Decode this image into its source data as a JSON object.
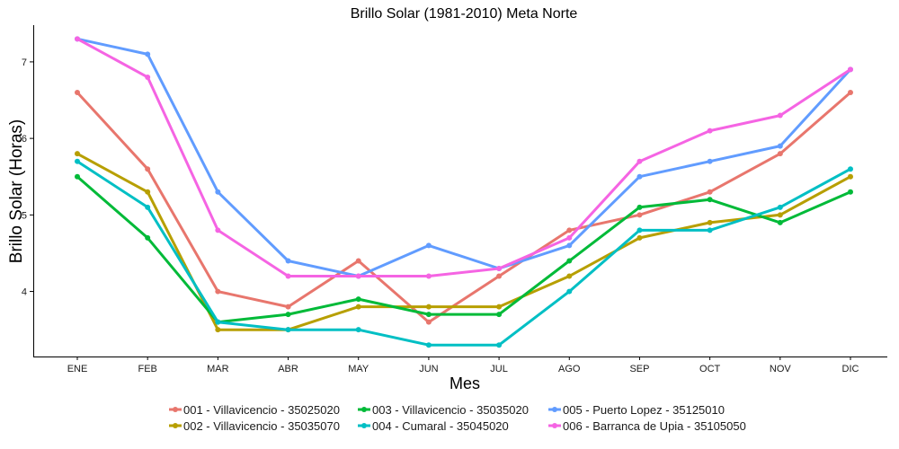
{
  "chart_data": {
    "type": "line",
    "title": "Brillo Solar (1981-2010)  Meta Norte",
    "xlabel": "Mes",
    "ylabel": "Brillo Solar (Horas)",
    "categories": [
      "ENE",
      "FEB",
      "MAR",
      "ABR",
      "MAY",
      "JUN",
      "JUL",
      "AGO",
      "SEP",
      "OCT",
      "NOV",
      "DIC"
    ],
    "ylim": [
      3.15,
      7.48
    ],
    "yticks": [
      4,
      5,
      6,
      7
    ],
    "grid": false,
    "legend_position": "bottom",
    "series": [
      {
        "name": "001 - Villavicencio - 35025020",
        "color": "#E8766D",
        "values": [
          6.6,
          5.6,
          4.0,
          3.8,
          4.4,
          3.6,
          4.2,
          4.8,
          5.0,
          5.3,
          5.8,
          6.6
        ]
      },
      {
        "name": "002 - Villavicencio - 35035070",
        "color": "#B79F00",
        "values": [
          5.8,
          5.3,
          3.5,
          3.5,
          3.8,
          3.8,
          3.8,
          4.2,
          4.7,
          4.9,
          5.0,
          5.5
        ]
      },
      {
        "name": "003 - Villavicencio - 35035020",
        "color": "#00BA38",
        "values": [
          5.5,
          4.7,
          3.6,
          3.7,
          3.9,
          3.7,
          3.7,
          4.4,
          5.1,
          5.2,
          4.9,
          5.3
        ]
      },
      {
        "name": "004 - Cumaral - 35045020",
        "color": "#00BFC4",
        "values": [
          5.7,
          5.1,
          3.6,
          3.5,
          3.5,
          3.3,
          3.3,
          4.0,
          4.8,
          4.8,
          5.1,
          5.6
        ]
      },
      {
        "name": "005 - Puerto Lopez - 35125010",
        "color": "#619CFF",
        "values": [
          7.3,
          7.1,
          5.3,
          4.4,
          4.2,
          4.6,
          4.3,
          4.6,
          5.5,
          5.7,
          5.9,
          6.9
        ]
      },
      {
        "name": "006 - Barranca de Upia - 35105050",
        "color": "#F564E3",
        "values": [
          7.3,
          6.8,
          4.8,
          4.2,
          4.2,
          4.2,
          4.3,
          4.7,
          5.7,
          6.1,
          6.3,
          6.9
        ]
      }
    ]
  }
}
